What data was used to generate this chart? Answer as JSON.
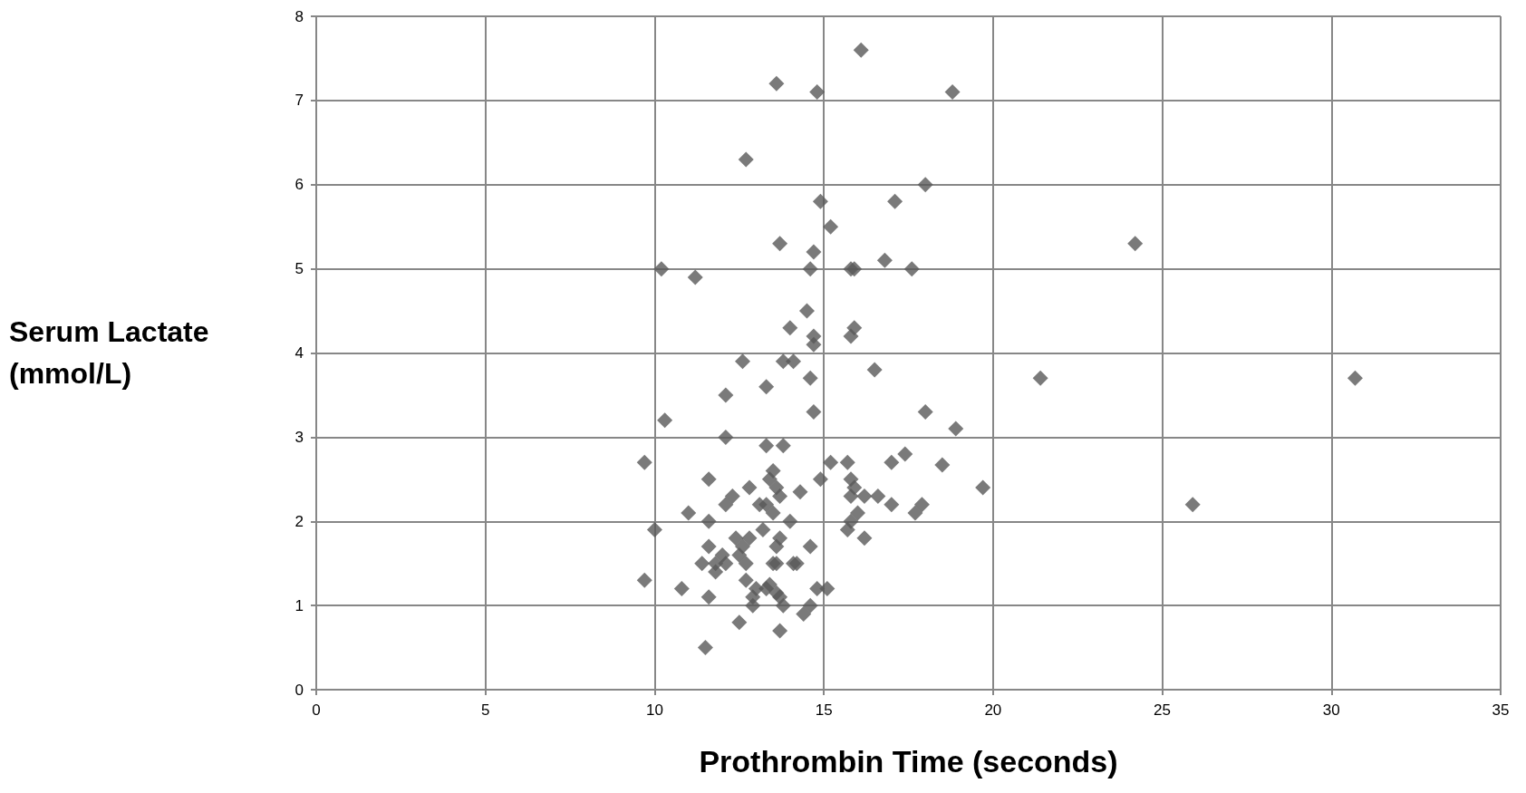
{
  "chart_data": {
    "type": "scatter",
    "xlabel": "Prothrombin Time (seconds)",
    "ylabel": "Serum Lactate (mmol/L)",
    "xlim": [
      0,
      35
    ],
    "xticks": [
      0,
      5,
      10,
      15,
      20,
      25,
      30,
      35
    ],
    "ylim": [
      0,
      8
    ],
    "yticks": [
      0,
      1,
      2,
      3,
      4,
      5,
      6,
      7,
      8
    ],
    "grid": true,
    "marker": "diamond",
    "series": [
      {
        "color": "#595959",
        "x": [
          16.1,
          13.6,
          14.8,
          18.8,
          12.7,
          18.0,
          14.9,
          17.1,
          15.2,
          10.2,
          11.2,
          13.7,
          14.7,
          14.6,
          15.8,
          15.9,
          16.8,
          17.6,
          24.2,
          14.5,
          14.0,
          14.7,
          14.7,
          15.9,
          15.8,
          12.6,
          13.8,
          14.1,
          16.5,
          14.6,
          21.4,
          30.7,
          13.3,
          12.1,
          14.7,
          18.0,
          10.3,
          18.9,
          12.1,
          13.3,
          13.8,
          9.7,
          15.2,
          15.7,
          17.0,
          17.4,
          18.5,
          13.5,
          11.6,
          13.4,
          14.9,
          15.8,
          12.8,
          13.6,
          15.9,
          19.7,
          14.3,
          15.8,
          16.2,
          16.6,
          12.3,
          13.7,
          12.1,
          13.1,
          13.3,
          17.0,
          17.9,
          25.9,
          13.5,
          11.0,
          16.0,
          17.7,
          11.6,
          14.0,
          15.8,
          10.0,
          13.2,
          15.7,
          12.4,
          12.8,
          13.7,
          16.2,
          11.6,
          12.6,
          13.6,
          14.6,
          12.0,
          12.5,
          11.8,
          11.4,
          12.1,
          12.7,
          13.5,
          13.6,
          14.1,
          14.2,
          11.8,
          9.7,
          12.7,
          13.4,
          13.3,
          13.0,
          10.8,
          14.8,
          15.1,
          13.6,
          11.6,
          12.9,
          13.7,
          13.8,
          12.9,
          14.6,
          14.4,
          12.5,
          13.7,
          11.5
        ],
        "values": [
          7.6,
          7.2,
          7.1,
          7.1,
          6.3,
          6.0,
          5.8,
          5.8,
          5.5,
          5.0,
          4.9,
          5.3,
          5.2,
          5.0,
          5.0,
          5.0,
          5.1,
          5.0,
          5.3,
          4.5,
          4.3,
          4.2,
          4.1,
          4.3,
          4.2,
          3.9,
          3.9,
          3.9,
          3.8,
          3.7,
          3.7,
          3.7,
          3.6,
          3.5,
          3.3,
          3.3,
          3.2,
          3.1,
          3.0,
          2.9,
          2.9,
          2.7,
          2.7,
          2.7,
          2.7,
          2.8,
          2.67,
          2.6,
          2.5,
          2.5,
          2.5,
          2.5,
          2.4,
          2.4,
          2.4,
          2.4,
          2.35,
          2.3,
          2.3,
          2.3,
          2.3,
          2.3,
          2.2,
          2.2,
          2.2,
          2.2,
          2.2,
          2.2,
          2.1,
          2.1,
          2.1,
          2.1,
          2.0,
          2.0,
          2.0,
          1.9,
          1.9,
          1.9,
          1.8,
          1.8,
          1.8,
          1.8,
          1.7,
          1.7,
          1.7,
          1.7,
          1.6,
          1.6,
          1.5,
          1.5,
          1.5,
          1.5,
          1.5,
          1.5,
          1.5,
          1.5,
          1.4,
          1.3,
          1.3,
          1.25,
          1.2,
          1.2,
          1.2,
          1.2,
          1.2,
          1.15,
          1.1,
          1.1,
          1.1,
          1.0,
          1.0,
          1.0,
          0.9,
          0.8,
          0.7,
          0.5
        ]
      }
    ]
  }
}
